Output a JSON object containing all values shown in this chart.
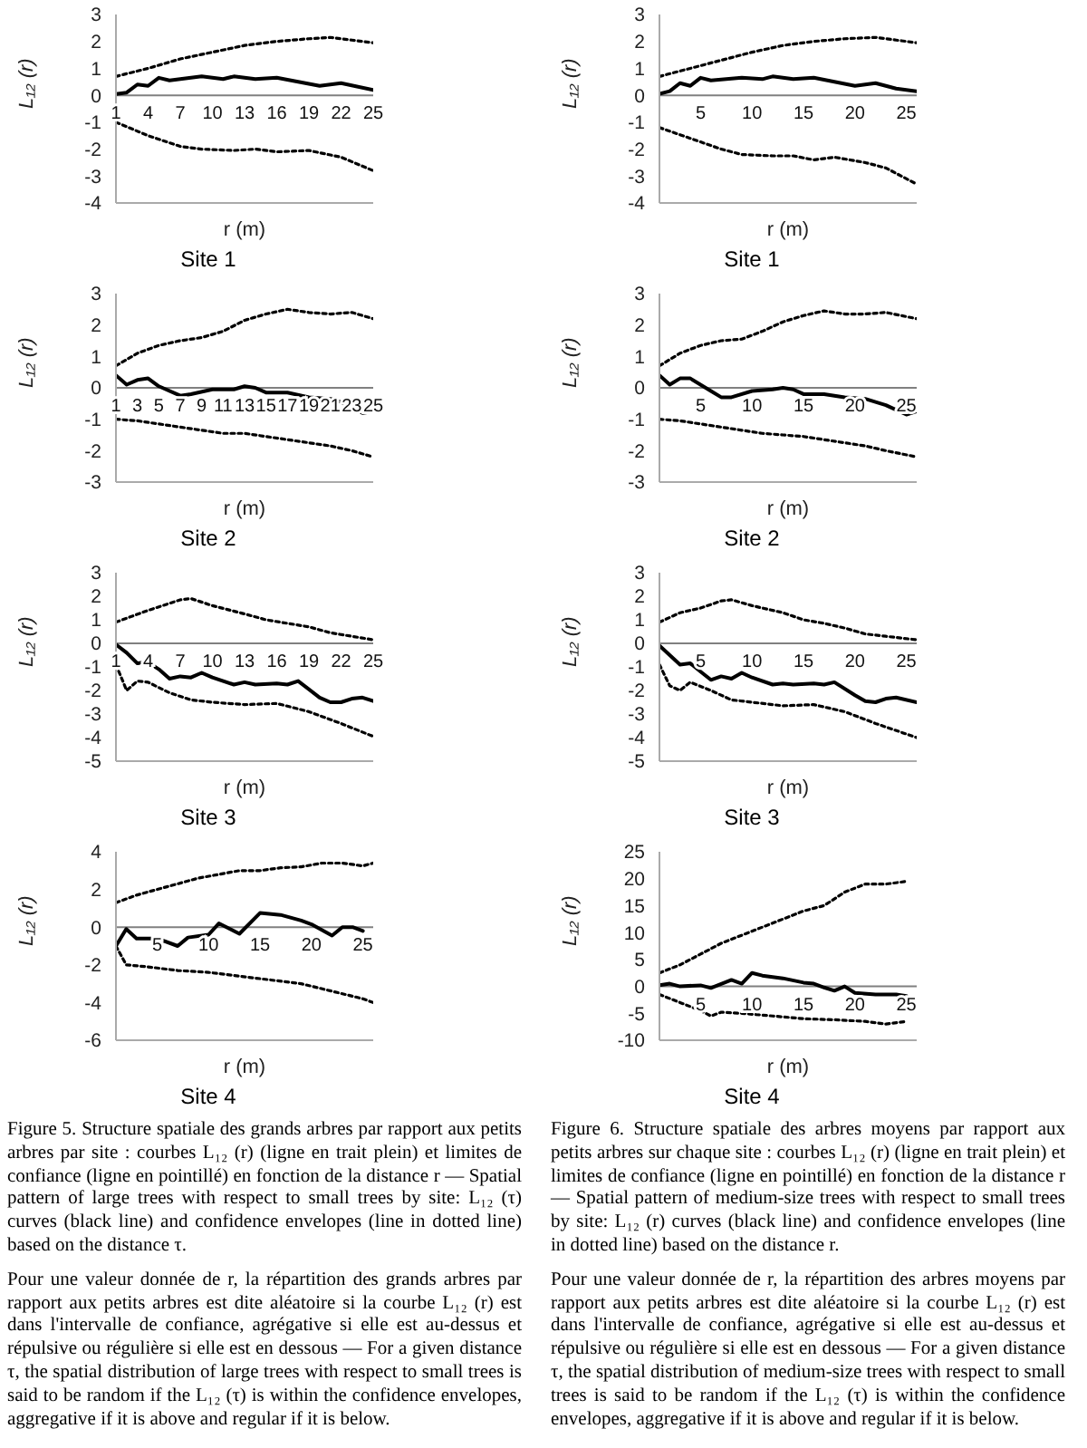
{
  "chart_data": [
    {
      "type": "line",
      "title": "Site 1",
      "xlabel": "r (m)",
      "ylabel": "L₁₂ (r)",
      "xlim": [
        1,
        25
      ],
      "xticks": [
        1,
        4,
        7,
        10,
        13,
        16,
        19,
        22,
        25
      ],
      "ylim": [
        -4,
        3
      ],
      "yticks": [
        -4,
        -3,
        -2,
        -1,
        0,
        1,
        2,
        3
      ],
      "series": [
        {
          "color": "#000000",
          "line_style": "dotted",
          "x": [
            1,
            4,
            7,
            10,
            13,
            16,
            19,
            21,
            23,
            25
          ],
          "values": [
            0.7,
            1.0,
            1.35,
            1.6,
            1.85,
            2.0,
            2.1,
            2.15,
            2.05,
            1.95
          ]
        },
        {
          "color": "#000000",
          "line_style": "solid",
          "x": [
            1,
            2,
            3,
            4,
            5,
            6,
            9,
            11,
            12,
            14,
            16,
            18,
            20,
            22,
            25
          ],
          "values": [
            0.05,
            0.1,
            0.4,
            0.35,
            0.65,
            0.55,
            0.7,
            0.6,
            0.7,
            0.6,
            0.65,
            0.5,
            0.35,
            0.45,
            0.2
          ]
        },
        {
          "color": "#000000",
          "line_style": "dotted",
          "x": [
            1,
            4,
            7,
            9,
            12,
            14,
            16,
            19,
            22,
            25
          ],
          "values": [
            -1.0,
            -1.5,
            -1.9,
            -2.0,
            -2.05,
            -2.0,
            -2.1,
            -2.05,
            -2.3,
            -2.8
          ]
        }
      ]
    },
    {
      "type": "line",
      "title": "Site 2",
      "xlabel": "r (m)",
      "ylabel": "L₁₂ (r)",
      "xlim": [
        1,
        25
      ],
      "xticks": [
        1,
        3,
        5,
        7,
        9,
        11,
        13,
        15,
        17,
        19,
        21,
        23,
        25
      ],
      "ylim": [
        -3,
        3
      ],
      "yticks": [
        -3,
        -2,
        -1,
        0,
        1,
        2,
        3
      ],
      "series": [
        {
          "color": "#000000",
          "line_style": "dotted",
          "x": [
            1,
            3,
            5,
            7,
            9,
            11,
            13,
            15,
            17,
            19,
            21,
            23,
            25
          ],
          "values": [
            0.7,
            1.1,
            1.35,
            1.5,
            1.6,
            1.8,
            2.15,
            2.35,
            2.5,
            2.4,
            2.35,
            2.4,
            2.2
          ]
        },
        {
          "color": "#000000",
          "line_style": "solid",
          "x": [
            1,
            2,
            3,
            4,
            5,
            7,
            8,
            10,
            12,
            13,
            14,
            15,
            17,
            19,
            21,
            22,
            24,
            25
          ],
          "values": [
            0.4,
            0.1,
            0.25,
            0.3,
            0.05,
            -0.25,
            -0.2,
            -0.05,
            -0.05,
            0.05,
            0.0,
            -0.15,
            -0.15,
            -0.3,
            -0.35,
            -0.45,
            -0.8,
            -0.75
          ]
        },
        {
          "color": "#000000",
          "line_style": "dotted",
          "x": [
            1,
            3,
            5,
            7,
            9,
            11,
            13,
            15,
            17,
            19,
            21,
            23,
            25
          ],
          "values": [
            -1.0,
            -1.05,
            -1.15,
            -1.25,
            -1.35,
            -1.45,
            -1.45,
            -1.55,
            -1.65,
            -1.75,
            -1.85,
            -2.0,
            -2.2
          ]
        }
      ]
    },
    {
      "type": "line",
      "title": "Site 3",
      "xlabel": "r (m)",
      "ylabel": "L₁₂ (r)",
      "xlim": [
        1,
        25
      ],
      "xticks": [
        1,
        4,
        7,
        10,
        13,
        16,
        19,
        22,
        25
      ],
      "ylim": [
        -5,
        3
      ],
      "yticks": [
        -5,
        -4,
        -3,
        -2,
        -1,
        0,
        1,
        2,
        3
      ],
      "series": [
        {
          "color": "#000000",
          "line_style": "dotted",
          "x": [
            1,
            4,
            7,
            8,
            10,
            13,
            15,
            17,
            19,
            21,
            23,
            25
          ],
          "values": [
            0.9,
            1.4,
            1.85,
            1.9,
            1.6,
            1.25,
            1.0,
            0.85,
            0.7,
            0.45,
            0.3,
            0.15
          ]
        },
        {
          "color": "#000000",
          "line_style": "solid",
          "x": [
            1,
            2,
            3,
            4,
            5,
            6,
            7,
            8,
            9,
            10,
            12,
            13,
            14,
            16,
            17,
            18,
            20,
            21,
            22,
            23,
            24,
            25
          ],
          "values": [
            -0.05,
            -0.4,
            -0.85,
            -0.8,
            -1.1,
            -1.5,
            -1.4,
            -1.45,
            -1.25,
            -1.45,
            -1.75,
            -1.65,
            -1.75,
            -1.7,
            -1.75,
            -1.6,
            -2.3,
            -2.5,
            -2.5,
            -2.35,
            -2.3,
            -2.45
          ]
        },
        {
          "color": "#000000",
          "line_style": "dotted",
          "x": [
            1,
            2,
            3,
            4,
            6,
            8,
            10,
            13,
            16,
            19,
            22,
            25
          ],
          "values": [
            -0.9,
            -2.0,
            -1.6,
            -1.65,
            -2.1,
            -2.4,
            -2.5,
            -2.6,
            -2.55,
            -2.9,
            -3.4,
            -3.95
          ]
        }
      ]
    },
    {
      "type": "line",
      "title": "Site 4",
      "xlabel": "r (m)",
      "ylabel": "L₁₂ (r)",
      "xlim": [
        1,
        26
      ],
      "xticks": [
        5,
        10,
        15,
        20,
        25
      ],
      "ylim": [
        -6,
        4
      ],
      "yticks": [
        -6,
        -4,
        -2,
        0,
        2,
        4
      ],
      "annotations": [
        "Figure 5. Structure spatiale des grands arbres par rapport aux petits arbres par site : courbes L₁₂ (r) (ligne en trait plein) et limites de confiance (ligne en pointillé) en fonction de la distance r — Spatial pattern of large trees with respect to small trees by site: L₁₂ (τ) curves (black line) and confidence envelopes (line in dotted line) based on the distance τ.",
        "Pour une valeur donnée de r, la répartition des grands arbres par rapport aux petits arbres est dite aléatoire si la courbe L₁₂ (r) est dans l'intervalle de confiance, agrégative si elle est au-dessus et répulsive ou régulière si elle est en dessous — For a given distance τ, the spatial distribution of large trees with respect to small trees is said to be random if the L₁₂ (τ) is within the confidence envelopes, aggregative if it is above and regular if it is below."
      ],
      "series": [
        {
          "color": "#000000",
          "line_style": "dotted",
          "x": [
            1,
            3,
            5,
            7,
            9,
            11,
            13,
            15,
            17,
            19,
            21,
            23,
            25,
            26
          ],
          "values": [
            1.3,
            1.7,
            2.0,
            2.3,
            2.6,
            2.8,
            3.0,
            3.0,
            3.15,
            3.2,
            3.4,
            3.4,
            3.25,
            3.4
          ]
        },
        {
          "color": "#000000",
          "line_style": "solid",
          "x": [
            1,
            2,
            3,
            5,
            7,
            8,
            10,
            11,
            13,
            15,
            17,
            19,
            20,
            22,
            23,
            24,
            25
          ],
          "values": [
            -1.0,
            -0.1,
            -0.6,
            -0.6,
            -1.0,
            -0.55,
            -0.4,
            0.2,
            -0.35,
            0.75,
            0.65,
            0.35,
            0.15,
            -0.45,
            0.0,
            0.0,
            -0.2
          ]
        },
        {
          "color": "#000000",
          "line_style": "dotted",
          "x": [
            1,
            2,
            4,
            7,
            10,
            13,
            16,
            19,
            22,
            25,
            26
          ],
          "values": [
            -1.0,
            -2.0,
            -2.1,
            -2.3,
            -2.4,
            -2.6,
            -2.8,
            -3.0,
            -3.4,
            -3.8,
            -4.0
          ]
        }
      ]
    },
    {
      "type": "line",
      "title": "Site 1",
      "xlabel": "r (m)",
      "ylabel": "L₁₂ (r)",
      "xlim": [
        1,
        26
      ],
      "xticks": [
        5,
        10,
        15,
        20,
        25
      ],
      "ylim": [
        -4,
        3
      ],
      "yticks": [
        -4,
        -3,
        -2,
        -1,
        0,
        1,
        2,
        3
      ],
      "series": [
        {
          "color": "#000000",
          "line_style": "dotted",
          "x": [
            1,
            4,
            7,
            10,
            13,
            16,
            19,
            22,
            24,
            26
          ],
          "values": [
            0.7,
            1.0,
            1.3,
            1.6,
            1.85,
            2.0,
            2.1,
            2.15,
            2.05,
            1.95
          ]
        },
        {
          "color": "#000000",
          "line_style": "solid",
          "x": [
            1,
            2,
            3,
            4,
            5,
            6,
            9,
            11,
            12,
            14,
            16,
            18,
            20,
            22,
            24,
            26
          ],
          "values": [
            0.05,
            0.15,
            0.45,
            0.35,
            0.65,
            0.55,
            0.65,
            0.6,
            0.7,
            0.6,
            0.65,
            0.5,
            0.35,
            0.45,
            0.25,
            0.15
          ]
        },
        {
          "color": "#000000",
          "line_style": "dotted",
          "x": [
            1,
            4,
            7,
            9,
            12,
            14,
            16,
            18,
            21,
            23,
            26
          ],
          "values": [
            -1.2,
            -1.6,
            -2.0,
            -2.2,
            -2.25,
            -2.25,
            -2.4,
            -2.3,
            -2.5,
            -2.7,
            -3.3
          ]
        }
      ]
    },
    {
      "type": "line",
      "title": "Site 2",
      "xlabel": "r (m)",
      "ylabel": "L₁₂ (r)",
      "xlim": [
        1,
        26
      ],
      "xticks": [
        5,
        10,
        15,
        20,
        25
      ],
      "ylim": [
        -3,
        3
      ],
      "yticks": [
        -3,
        -2,
        -1,
        0,
        1,
        2,
        3
      ],
      "series": [
        {
          "color": "#000000",
          "line_style": "dotted",
          "x": [
            1,
            3,
            5,
            7,
            9,
            11,
            13,
            15,
            17,
            19,
            21,
            23,
            26
          ],
          "values": [
            0.7,
            1.1,
            1.35,
            1.5,
            1.55,
            1.8,
            2.1,
            2.3,
            2.45,
            2.35,
            2.35,
            2.4,
            2.2
          ]
        },
        {
          "color": "#000000",
          "line_style": "solid",
          "x": [
            1,
            2,
            3,
            4,
            6,
            7,
            8,
            10,
            12,
            13,
            14,
            15,
            17,
            19,
            21,
            23,
            25,
            26
          ],
          "values": [
            0.4,
            0.1,
            0.3,
            0.3,
            -0.1,
            -0.3,
            -0.3,
            -0.1,
            -0.05,
            0.0,
            -0.05,
            -0.2,
            -0.2,
            -0.3,
            -0.35,
            -0.55,
            -0.85,
            -0.75
          ]
        },
        {
          "color": "#000000",
          "line_style": "dotted",
          "x": [
            1,
            3,
            5,
            7,
            9,
            11,
            13,
            15,
            17,
            19,
            21,
            23,
            26
          ],
          "values": [
            -1.0,
            -1.05,
            -1.15,
            -1.25,
            -1.35,
            -1.45,
            -1.5,
            -1.55,
            -1.65,
            -1.75,
            -1.85,
            -2.0,
            -2.2
          ]
        }
      ]
    },
    {
      "type": "line",
      "title": "Site 3",
      "xlabel": "r (m)",
      "ylabel": "L₁₂ (r)",
      "xlim": [
        1,
        26
      ],
      "xticks": [
        5,
        10,
        15,
        20,
        25
      ],
      "ylim": [
        -5,
        3
      ],
      "yticks": [
        -5,
        -4,
        -3,
        -2,
        -1,
        0,
        1,
        2,
        3
      ],
      "series": [
        {
          "color": "#000000",
          "line_style": "dotted",
          "x": [
            1,
            3,
            5,
            7,
            8,
            10,
            13,
            15,
            17,
            19,
            21,
            23,
            26
          ],
          "values": [
            0.9,
            1.3,
            1.5,
            1.8,
            1.85,
            1.6,
            1.3,
            1.0,
            0.85,
            0.65,
            0.4,
            0.3,
            0.15
          ]
        },
        {
          "color": "#000000",
          "line_style": "solid",
          "x": [
            1,
            2,
            3,
            4,
            5,
            6,
            7,
            8,
            9,
            10,
            12,
            13,
            14,
            16,
            17,
            18,
            20,
            21,
            22,
            23,
            24,
            26
          ],
          "values": [
            -0.1,
            -0.5,
            -0.9,
            -0.85,
            -1.2,
            -1.55,
            -1.4,
            -1.5,
            -1.25,
            -1.45,
            -1.75,
            -1.7,
            -1.75,
            -1.7,
            -1.75,
            -1.65,
            -2.2,
            -2.45,
            -2.5,
            -2.35,
            -2.3,
            -2.5
          ]
        },
        {
          "color": "#000000",
          "line_style": "dotted",
          "x": [
            1,
            2,
            3,
            4,
            6,
            8,
            10,
            13,
            16,
            19,
            22,
            26
          ],
          "values": [
            -0.9,
            -1.8,
            -2.0,
            -1.65,
            -2.0,
            -2.4,
            -2.5,
            -2.65,
            -2.6,
            -2.9,
            -3.4,
            -4.0
          ]
        }
      ]
    },
    {
      "type": "line",
      "title": "Site 4",
      "xlabel": "r (m)",
      "ylabel": "L₁₂ (r)",
      "xlim": [
        1,
        26
      ],
      "xticks": [
        5,
        10,
        15,
        20,
        25
      ],
      "ylim": [
        -10,
        25
      ],
      "yticks": [
        -10,
        -5,
        0,
        5,
        10,
        15,
        20,
        25
      ],
      "annotations": [
        "Figure 6. Structure spatiale des arbres moyens par rapport aux petits arbres sur chaque site : courbes L₁₂ (r) (ligne en trait plein) et limites de confiance (ligne en pointillé) en fonction de la distance r — Spatial pattern of medium-size trees with respect to small trees by site: L₁₂ (r) curves (black line) and confidence envelopes (line in dotted line) based on the distance r.",
        "Pour une valeur donnée de r, la répartition des arbres moyens par rapport aux petits arbres est dite aléatoire si la courbe L₁₂ (r) est dans l'intervalle de confiance, agrégative si elle est au-dessus et répulsive ou régulière si elle est en dessous — For a given distance τ, the spatial distribution of medium-size trees with respect to small trees is said to be random if the L₁₂ (τ) is within the confidence envelopes, aggregative if it is above and regular if it is below."
      ],
      "series": [
        {
          "color": "#000000",
          "line_style": "dotted",
          "x": [
            1,
            3,
            5,
            7,
            9,
            11,
            13,
            15,
            17,
            19,
            21,
            23,
            25
          ],
          "values": [
            2.5,
            4,
            6,
            8,
            9.5,
            11,
            12.5,
            14,
            15,
            17.5,
            19,
            19,
            19.5
          ]
        },
        {
          "color": "#000000",
          "line_style": "solid",
          "x": [
            1,
            2,
            3,
            5,
            6,
            8,
            9,
            10,
            11,
            13,
            15,
            16,
            17,
            18,
            19,
            20,
            22,
            24,
            25
          ],
          "values": [
            0.2,
            0.5,
            0,
            0.2,
            -0.3,
            1.2,
            0.5,
            2.5,
            2,
            1.5,
            0.7,
            0.5,
            -0.2,
            -0.8,
            0,
            -1.2,
            -1.5,
            -1.5,
            -1.8
          ]
        },
        {
          "color": "#000000",
          "line_style": "dotted",
          "x": [
            1,
            3,
            5,
            6,
            7,
            9,
            12,
            15,
            18,
            21,
            23,
            25
          ],
          "values": [
            -1.5,
            -3,
            -4.5,
            -5.5,
            -4.8,
            -5,
            -5.5,
            -6,
            -6.2,
            -6.5,
            -7,
            -6.5
          ]
        }
      ]
    }
  ]
}
